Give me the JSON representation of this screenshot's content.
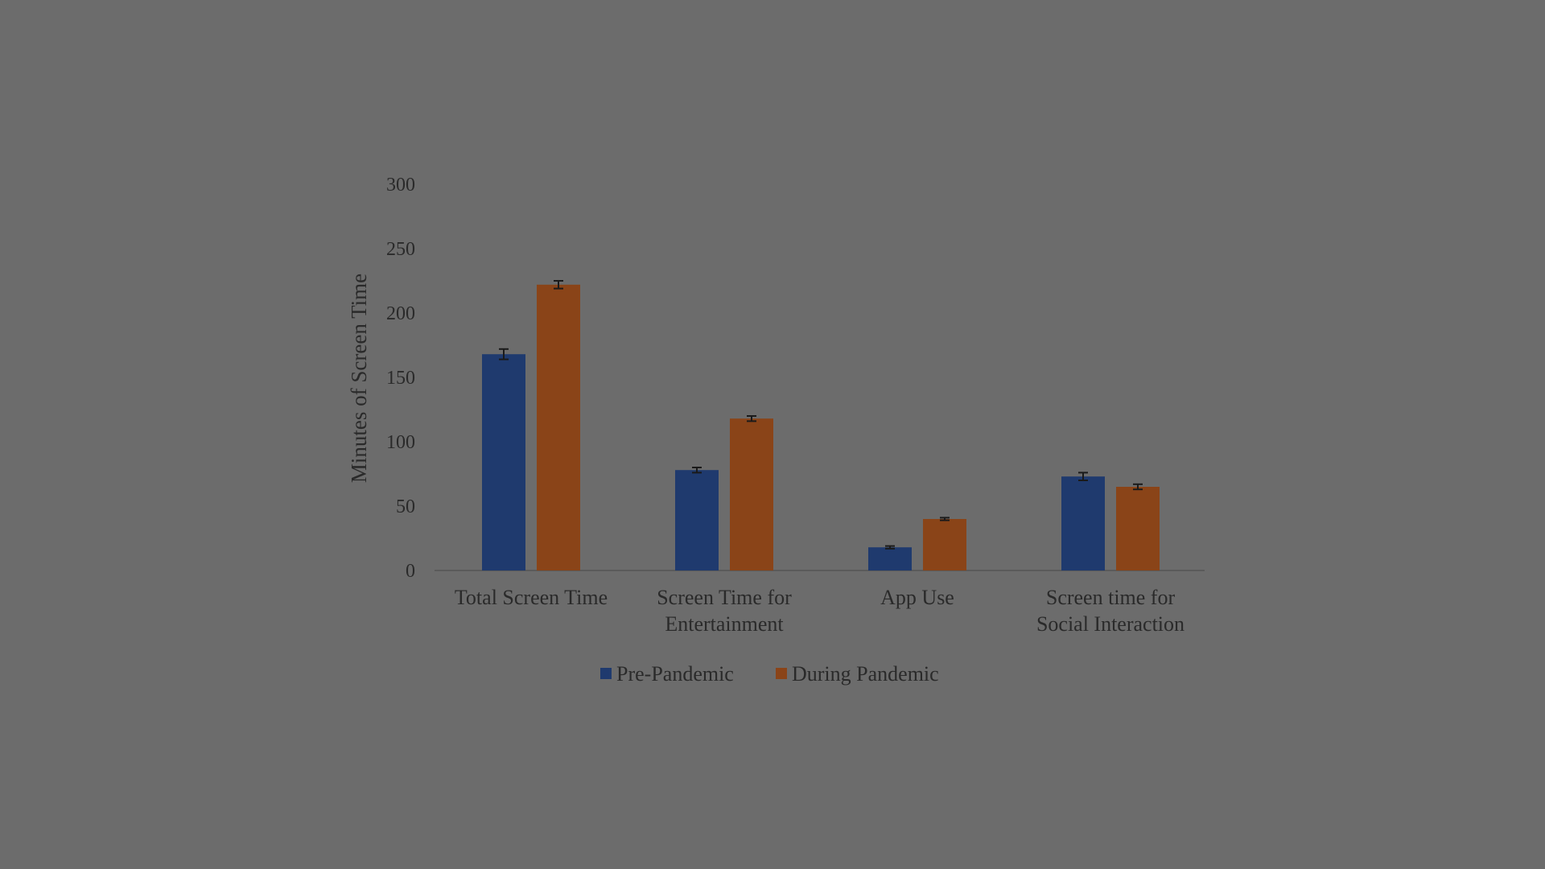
{
  "chart_data": {
    "type": "bar",
    "title": "",
    "xlabel": "",
    "ylabel": "Minutes of Screen Time",
    "ylim": [
      0,
      300
    ],
    "yticks": [
      0,
      50,
      100,
      150,
      200,
      250,
      300
    ],
    "grid": false,
    "legend_position": "bottom",
    "categories": [
      [
        "Total Screen Time"
      ],
      [
        "Screen Time for",
        "Entertainment"
      ],
      [
        "App Use"
      ],
      [
        "Screen time for",
        "Social Interaction"
      ]
    ],
    "series": [
      {
        "name": "Pre-Pandemic",
        "color": "#1f3a6e",
        "values": [
          168,
          78,
          18,
          73
        ],
        "errors": [
          4,
          2,
          1,
          3
        ]
      },
      {
        "name": "During Pandemic",
        "color": "#8a4418",
        "values": [
          222,
          118,
          40,
          65
        ],
        "errors": [
          3,
          2,
          1,
          2
        ]
      }
    ]
  }
}
